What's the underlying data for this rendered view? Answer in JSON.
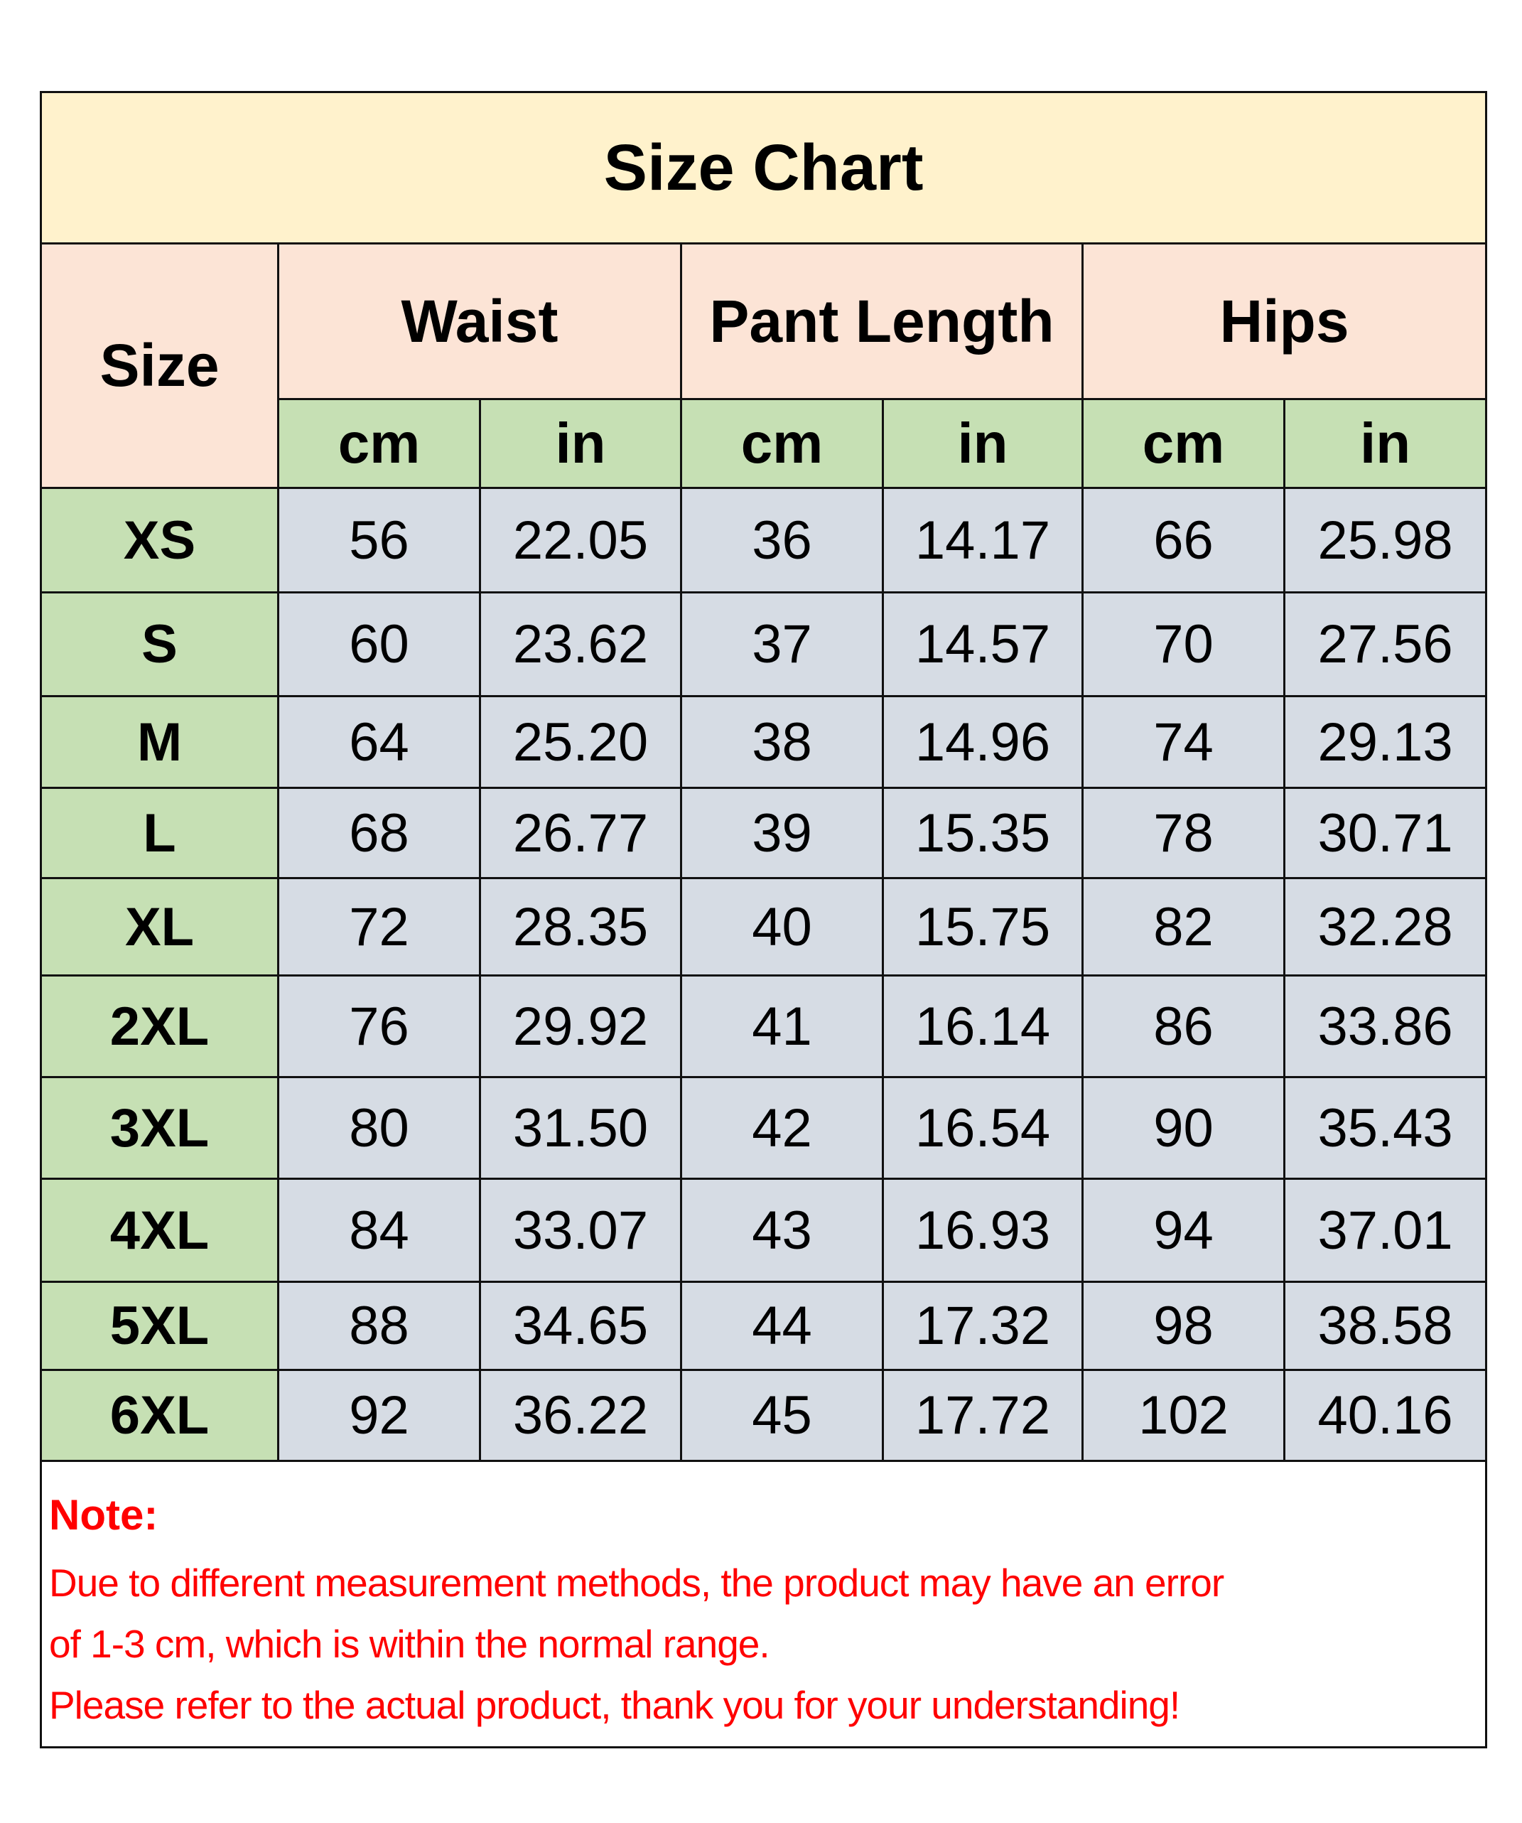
{
  "title": "Size Chart",
  "headers": {
    "size": "Size",
    "groups": [
      "Waist",
      "Pant Length",
      "Hips"
    ],
    "units": [
      "cm",
      "in",
      "cm",
      "in",
      "cm",
      "in"
    ]
  },
  "rows": [
    {
      "size": "XS",
      "values": [
        "56",
        "22.05",
        "36",
        "14.17",
        "66",
        "25.98"
      ]
    },
    {
      "size": "S",
      "values": [
        "60",
        "23.62",
        "37",
        "14.57",
        "70",
        "27.56"
      ]
    },
    {
      "size": "M",
      "values": [
        "64",
        "25.20",
        "38",
        "14.96",
        "74",
        "29.13"
      ]
    },
    {
      "size": "L",
      "values": [
        "68",
        "26.77",
        "39",
        "15.35",
        "78",
        "30.71"
      ]
    },
    {
      "size": "XL",
      "values": [
        "72",
        "28.35",
        "40",
        "15.75",
        "82",
        "32.28"
      ]
    },
    {
      "size": "2XL",
      "values": [
        "76",
        "29.92",
        "41",
        "16.14",
        "86",
        "33.86"
      ]
    },
    {
      "size": "3XL",
      "values": [
        "80",
        "31.50",
        "42",
        "16.54",
        "90",
        "35.43"
      ]
    },
    {
      "size": "4XL",
      "values": [
        "84",
        "33.07",
        "43",
        "16.93",
        "94",
        "37.01"
      ]
    },
    {
      "size": "5XL",
      "values": [
        "88",
        "34.65",
        "44",
        "17.32",
        "98",
        "38.58"
      ]
    },
    {
      "size": "6XL",
      "values": [
        "92",
        "36.22",
        "45",
        "17.72",
        "102",
        "40.16"
      ]
    }
  ],
  "note": {
    "title": "Note:",
    "lines": [
      "Due to different measurement methods, the product may have an error",
      "of 1-3 cm, which is within the normal range.",
      "Please refer to the actual product, thank you for your understanding!"
    ]
  },
  "colors": {
    "title_bg": "#fff2cc",
    "header_bg": "#fce4d6",
    "unit_bg": "#c6e0b4",
    "size_bg": "#c6e0b4",
    "value_bg": "#d6dce4",
    "note_text": "#ff0000"
  }
}
